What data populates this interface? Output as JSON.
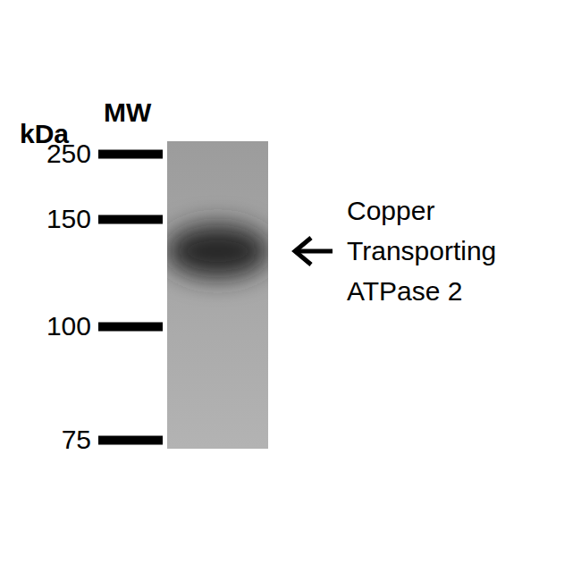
{
  "chart_data": {
    "type": "blot",
    "y_label": "kDa",
    "x_label": "MW",
    "ylim": [
      75,
      250
    ],
    "yticks": [
      250,
      150,
      100,
      75
    ],
    "values": [
      135
    ],
    "color": "#262626",
    "annotation": [
      "Copper",
      "Transporting",
      "ATPase 2"
    ]
  }
}
